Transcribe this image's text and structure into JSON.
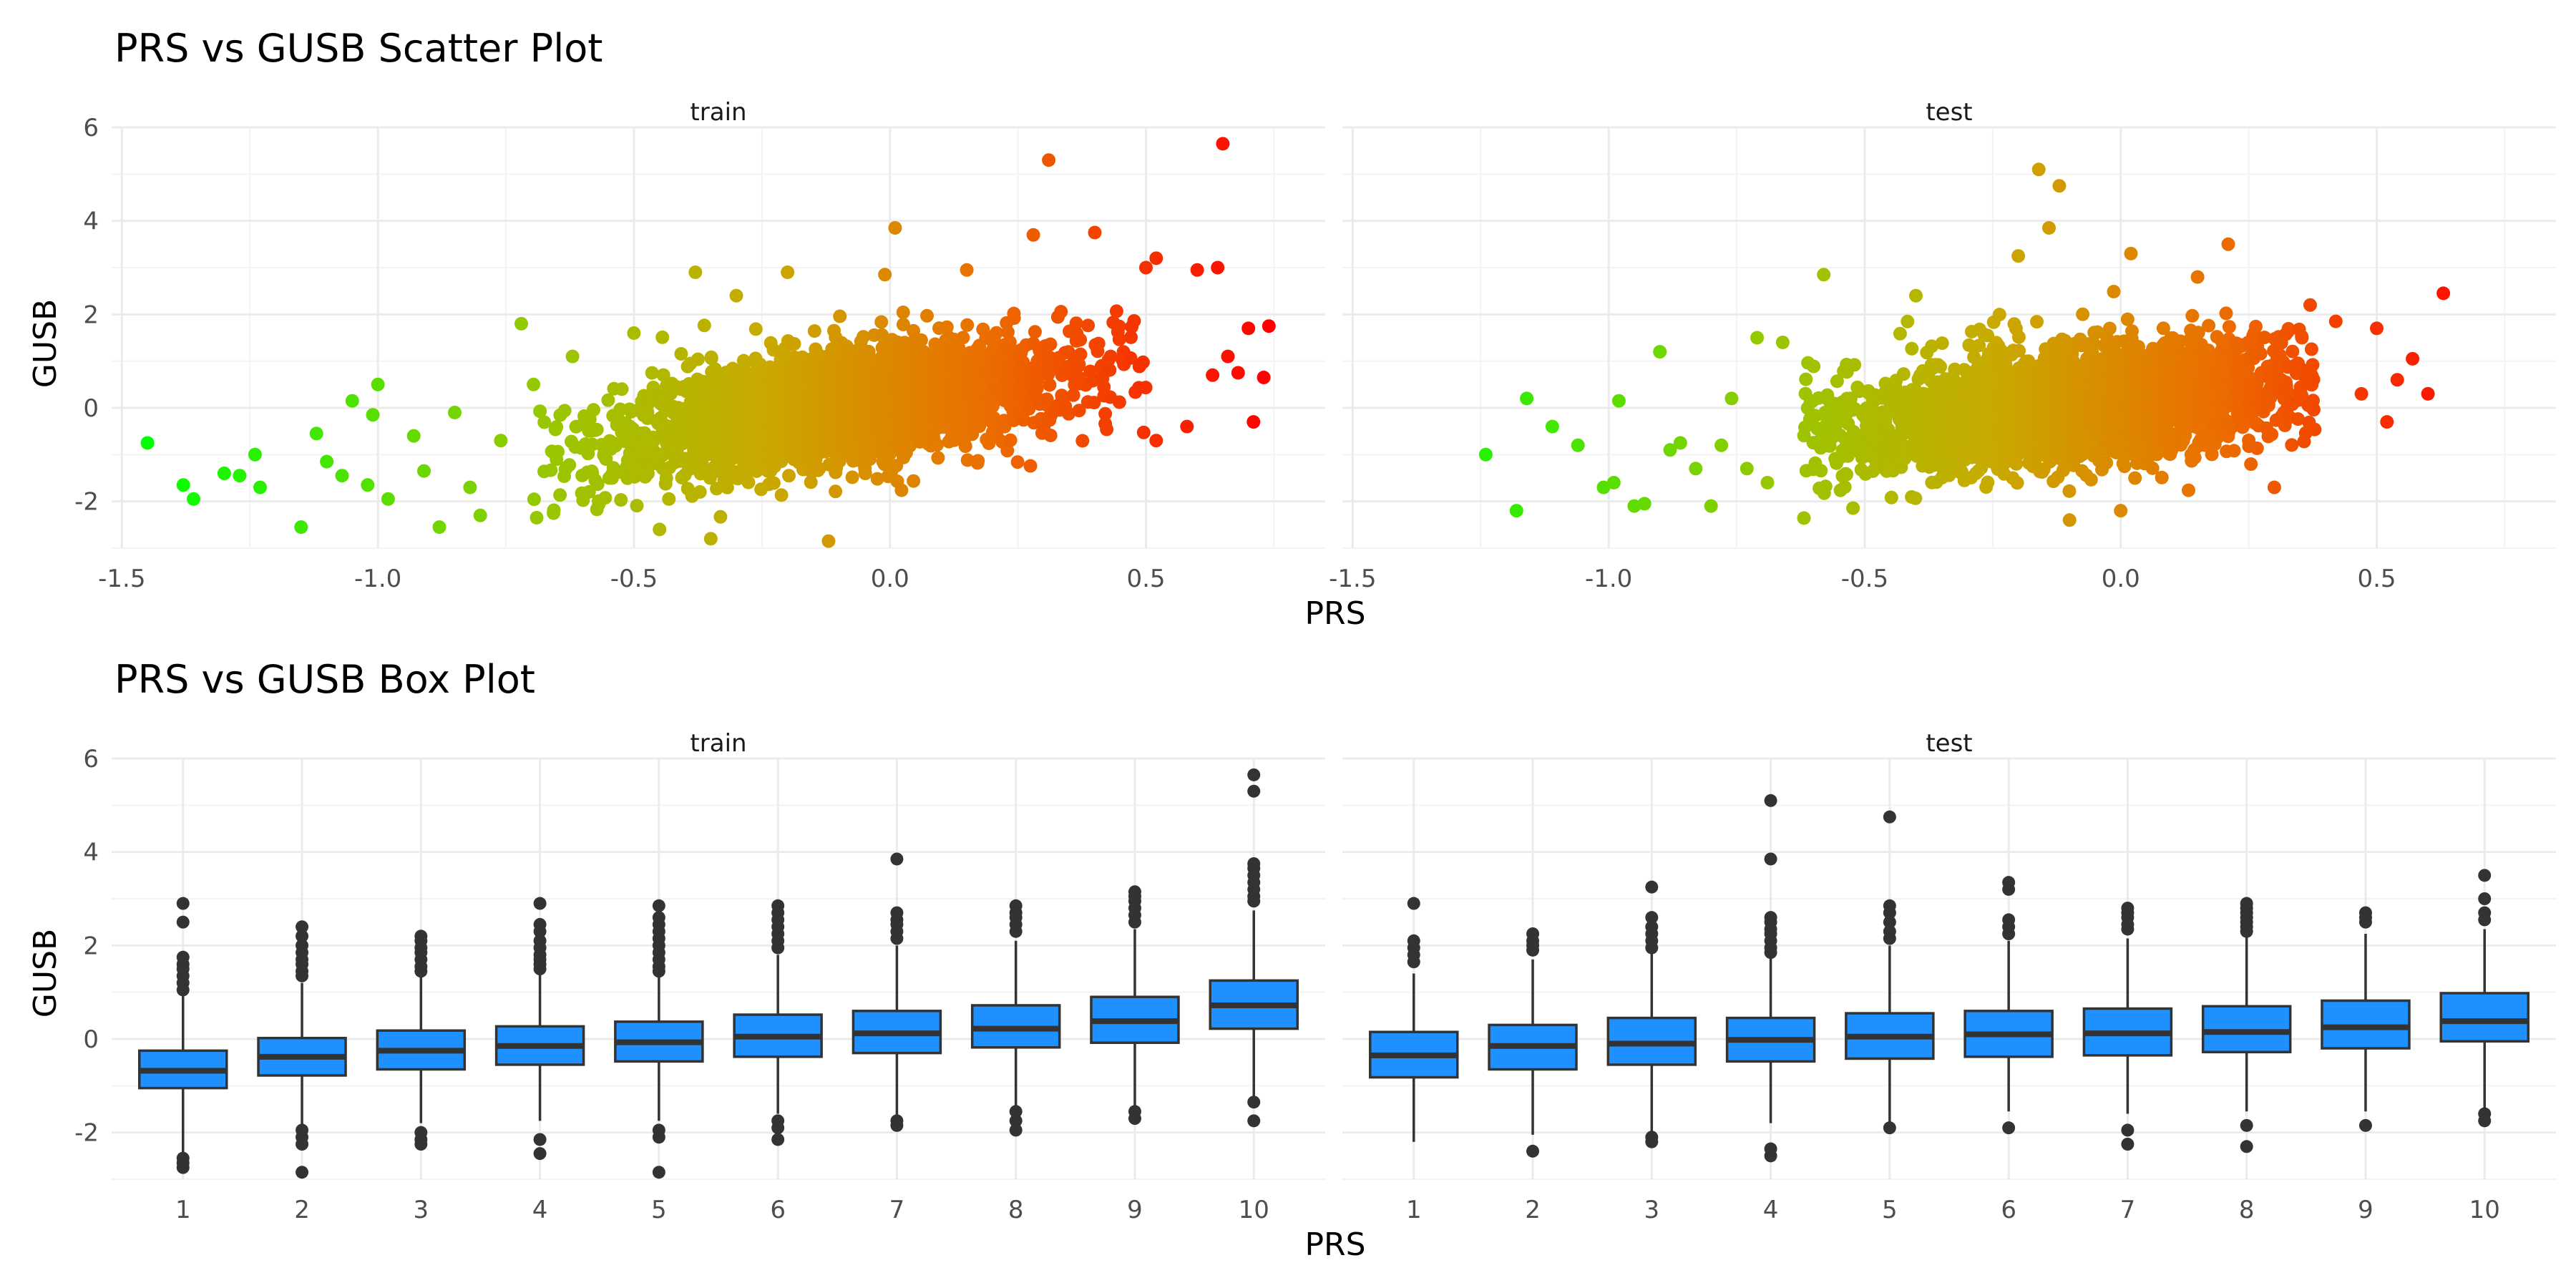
{
  "colors": {
    "box_fill": "#1e90ff",
    "box_line": "#333333",
    "grid": "#ebebeb",
    "low": "#00ff00",
    "high": "#ff0000"
  },
  "chart_data": [
    {
      "type": "scatter",
      "title": "PRS vs GUSB Scatter Plot",
      "xlabel": "PRS",
      "ylabel": "GUSB",
      "xlim": [
        -1.52,
        0.85
      ],
      "ylim": [
        -3.0,
        6.0
      ],
      "xticks": [
        "-1.5",
        "-1.0",
        "-0.5",
        "0.0",
        "0.5"
      ],
      "yticks": [
        "-2",
        "0",
        "2",
        "4",
        "6"
      ],
      "color_scale": "PRS value, green (low) to red (high)",
      "grid": true,
      "facets": [
        {
          "name": "train",
          "trend_slope": 1.5,
          "core_x_range": [
            -0.7,
            0.5
          ],
          "outliers": [
            [
              -1.45,
              -0.75
            ],
            [
              -1.38,
              -1.65
            ],
            [
              -1.36,
              -1.95
            ],
            [
              -1.3,
              -1.4
            ],
            [
              -1.27,
              -1.45
            ],
            [
              -1.24,
              -1.0
            ],
            [
              -1.23,
              -1.7
            ],
            [
              -1.15,
              -2.55
            ],
            [
              -1.12,
              -0.55
            ],
            [
              -1.1,
              -1.15
            ],
            [
              -1.07,
              -1.45
            ],
            [
              -1.05,
              0.15
            ],
            [
              -1.02,
              -1.65
            ],
            [
              -1.01,
              -0.15
            ],
            [
              -1.0,
              0.5
            ],
            [
              -0.98,
              -1.95
            ],
            [
              -0.93,
              -0.6
            ],
            [
              -0.91,
              -1.35
            ],
            [
              -0.88,
              -2.55
            ],
            [
              -0.85,
              -0.1
            ],
            [
              -0.82,
              -1.7
            ],
            [
              -0.8,
              -2.3
            ],
            [
              -0.76,
              -0.7
            ],
            [
              -0.72,
              1.8
            ],
            [
              -0.69,
              -2.35
            ],
            [
              -0.62,
              1.1
            ],
            [
              -0.5,
              1.6
            ],
            [
              -0.45,
              -2.6
            ],
            [
              -0.38,
              2.9
            ],
            [
              -0.35,
              -2.8
            ],
            [
              -0.3,
              2.4
            ],
            [
              -0.2,
              2.9
            ],
            [
              -0.12,
              -2.85
            ],
            [
              -0.01,
              2.85
            ],
            [
              0.01,
              3.85
            ],
            [
              0.15,
              2.95
            ],
            [
              0.28,
              3.7
            ],
            [
              0.31,
              5.3
            ],
            [
              0.4,
              3.75
            ],
            [
              0.5,
              3.0
            ],
            [
              0.52,
              -0.7
            ],
            [
              0.52,
              3.2
            ],
            [
              0.58,
              -0.4
            ],
            [
              0.6,
              2.95
            ],
            [
              0.63,
              0.7
            ],
            [
              0.64,
              3.0
            ],
            [
              0.65,
              5.65
            ],
            [
              0.66,
              1.1
            ],
            [
              0.68,
              0.75
            ],
            [
              0.7,
              1.7
            ],
            [
              0.71,
              -0.3
            ],
            [
              0.73,
              0.65
            ],
            [
              0.74,
              1.75
            ]
          ]
        },
        {
          "name": "test",
          "trend_slope": 1.1,
          "core_x_range": [
            -0.62,
            0.38
          ],
          "outliers": [
            [
              -1.24,
              -1.0
            ],
            [
              -1.18,
              -2.2
            ],
            [
              -1.16,
              0.2
            ],
            [
              -1.11,
              -0.4
            ],
            [
              -1.06,
              -0.8
            ],
            [
              -1.01,
              -1.7
            ],
            [
              -0.99,
              -1.6
            ],
            [
              -0.98,
              0.15
            ],
            [
              -0.95,
              -2.1
            ],
            [
              -0.93,
              -2.05
            ],
            [
              -0.9,
              1.2
            ],
            [
              -0.88,
              -0.9
            ],
            [
              -0.86,
              -0.75
            ],
            [
              -0.83,
              -1.3
            ],
            [
              -0.8,
              -2.1
            ],
            [
              -0.78,
              -0.8
            ],
            [
              -0.76,
              0.2
            ],
            [
              -0.73,
              -1.3
            ],
            [
              -0.71,
              1.5
            ],
            [
              -0.69,
              -1.6
            ],
            [
              -0.66,
              1.4
            ],
            [
              -0.58,
              2.85
            ],
            [
              -0.4,
              2.4
            ],
            [
              -0.2,
              3.25
            ],
            [
              -0.16,
              5.1
            ],
            [
              -0.14,
              3.85
            ],
            [
              -0.12,
              4.75
            ],
            [
              -0.1,
              -2.4
            ],
            [
              0.02,
              3.3
            ],
            [
              0.0,
              -2.2
            ],
            [
              0.15,
              2.8
            ],
            [
              0.21,
              3.5
            ],
            [
              0.3,
              -1.7
            ],
            [
              0.37,
              2.2
            ],
            [
              0.42,
              1.85
            ],
            [
              0.47,
              0.3
            ],
            [
              0.5,
              1.7
            ],
            [
              0.52,
              -0.3
            ],
            [
              0.54,
              0.6
            ],
            [
              0.57,
              1.05
            ],
            [
              0.6,
              0.3
            ],
            [
              0.63,
              2.45
            ]
          ]
        }
      ]
    },
    {
      "type": "box",
      "title": "PRS vs GUSB Box Plot",
      "xlabel": "PRS",
      "ylabel": "GUSB",
      "ylim": [
        -3.0,
        6.0
      ],
      "yticks": [
        "-2",
        "0",
        "2",
        "4",
        "6"
      ],
      "categories": [
        "1",
        "2",
        "3",
        "4",
        "5",
        "6",
        "7",
        "8",
        "9",
        "10"
      ],
      "grid": true,
      "facets": [
        {
          "name": "train",
          "boxes": [
            {
              "q1": -1.05,
              "median": -0.68,
              "q3": -0.25,
              "lw": -2.5,
              "uw": 0.95,
              "outliers": [
                2.9,
                2.5,
                1.75,
                1.6,
                1.5,
                1.35,
                1.2,
                1.05,
                -2.55,
                -2.65,
                -2.75
              ]
            },
            {
              "q1": -0.78,
              "median": -0.38,
              "q3": 0.02,
              "lw": -1.85,
              "uw": 1.2,
              "outliers": [
                2.4,
                2.2,
                2.0,
                1.85,
                1.7,
                1.6,
                1.45,
                1.35,
                -1.95,
                -2.1,
                -2.25,
                -2.85
              ]
            },
            {
              "q1": -0.65,
              "median": -0.25,
              "q3": 0.18,
              "lw": -1.8,
              "uw": 1.35,
              "outliers": [
                2.2,
                2.1,
                1.95,
                1.85,
                1.7,
                1.55,
                1.45,
                -2.0,
                -2.15,
                -2.25
              ]
            },
            {
              "q1": -0.55,
              "median": -0.15,
              "q3": 0.27,
              "lw": -1.75,
              "uw": 1.4,
              "outliers": [
                2.9,
                2.45,
                2.3,
                2.1,
                1.95,
                1.8,
                1.7,
                1.6,
                1.5,
                -2.15,
                -2.45
              ]
            },
            {
              "q1": -0.48,
              "median": -0.07,
              "q3": 0.37,
              "lw": -1.75,
              "uw": 1.35,
              "outliers": [
                2.85,
                2.6,
                2.45,
                2.3,
                2.15,
                2.0,
                1.85,
                1.7,
                1.55,
                1.45,
                -1.95,
                -2.1,
                -2.85
              ]
            },
            {
              "q1": -0.38,
              "median": 0.05,
              "q3": 0.52,
              "lw": -1.6,
              "uw": 1.8,
              "outliers": [
                2.85,
                2.7,
                2.55,
                2.4,
                2.25,
                2.1,
                1.95,
                -1.75,
                -1.9,
                -2.15
              ]
            },
            {
              "q1": -0.3,
              "median": 0.12,
              "q3": 0.6,
              "lw": -1.7,
              "uw": 2.0,
              "outliers": [
                3.85,
                2.7,
                2.55,
                2.45,
                2.3,
                2.15,
                -1.75,
                -1.85
              ]
            },
            {
              "q1": -0.18,
              "median": 0.22,
              "q3": 0.72,
              "lw": -1.5,
              "uw": 2.1,
              "outliers": [
                2.85,
                2.7,
                2.6,
                2.45,
                2.3,
                -1.55,
                -1.75,
                -1.95
              ]
            },
            {
              "q1": -0.08,
              "median": 0.38,
              "q3": 0.9,
              "lw": -1.5,
              "uw": 2.35,
              "outliers": [
                3.15,
                3.05,
                2.95,
                2.8,
                2.65,
                2.5,
                -1.55,
                -1.7
              ]
            },
            {
              "q1": 0.22,
              "median": 0.72,
              "q3": 1.25,
              "lw": -1.25,
              "uw": 2.75,
              "outliers": [
                5.65,
                5.3,
                3.75,
                3.65,
                3.5,
                3.35,
                3.2,
                3.05,
                2.95,
                -1.35,
                -1.75
              ]
            }
          ]
        },
        {
          "name": "test",
          "boxes": [
            {
              "q1": -0.82,
              "median": -0.35,
              "q3": 0.15,
              "lw": -2.2,
              "uw": 1.4,
              "outliers": [
                2.9,
                2.1,
                1.95,
                1.8,
                1.65
              ]
            },
            {
              "q1": -0.65,
              "median": -0.15,
              "q3": 0.3,
              "lw": -2.05,
              "uw": 1.7,
              "outliers": [
                2.25,
                2.1,
                2.0,
                1.9,
                -2.4
              ]
            },
            {
              "q1": -0.55,
              "median": -0.1,
              "q3": 0.45,
              "lw": -2.05,
              "uw": 1.85,
              "outliers": [
                3.25,
                2.6,
                2.4,
                2.25,
                2.1,
                1.95,
                -2.1,
                -2.2
              ]
            },
            {
              "q1": -0.48,
              "median": -0.02,
              "q3": 0.45,
              "lw": -1.8,
              "uw": 1.75,
              "outliers": [
                5.1,
                3.85,
                2.6,
                2.5,
                2.35,
                2.25,
                2.1,
                1.95,
                1.85,
                -2.35,
                -2.5
              ]
            },
            {
              "q1": -0.42,
              "median": 0.05,
              "q3": 0.55,
              "lw": -1.8,
              "uw": 2.0,
              "outliers": [
                4.75,
                2.85,
                2.7,
                2.5,
                2.3,
                2.15,
                -1.9
              ]
            },
            {
              "q1": -0.38,
              "median": 0.1,
              "q3": 0.6,
              "lw": -1.55,
              "uw": 2.1,
              "outliers": [
                3.35,
                3.2,
                2.55,
                2.4,
                2.25,
                -1.9
              ]
            },
            {
              "q1": -0.35,
              "median": 0.12,
              "q3": 0.65,
              "lw": -1.6,
              "uw": 2.15,
              "outliers": [
                2.8,
                2.7,
                2.6,
                2.45,
                2.35,
                -1.95,
                -2.25
              ]
            },
            {
              "q1": -0.28,
              "median": 0.15,
              "q3": 0.7,
              "lw": -1.55,
              "uw": 2.2,
              "outliers": [
                2.9,
                2.8,
                2.7,
                2.6,
                2.5,
                2.4,
                2.3,
                -1.85,
                -2.3
              ]
            },
            {
              "q1": -0.2,
              "median": 0.25,
              "q3": 0.82,
              "lw": -1.55,
              "uw": 2.25,
              "outliers": [
                2.7,
                2.6,
                2.5,
                -1.85
              ]
            },
            {
              "q1": -0.05,
              "median": 0.38,
              "q3": 0.98,
              "lw": -1.5,
              "uw": 2.35,
              "outliers": [
                3.5,
                3.0,
                2.7,
                2.55,
                -1.6,
                -1.75
              ]
            }
          ]
        }
      ]
    }
  ]
}
